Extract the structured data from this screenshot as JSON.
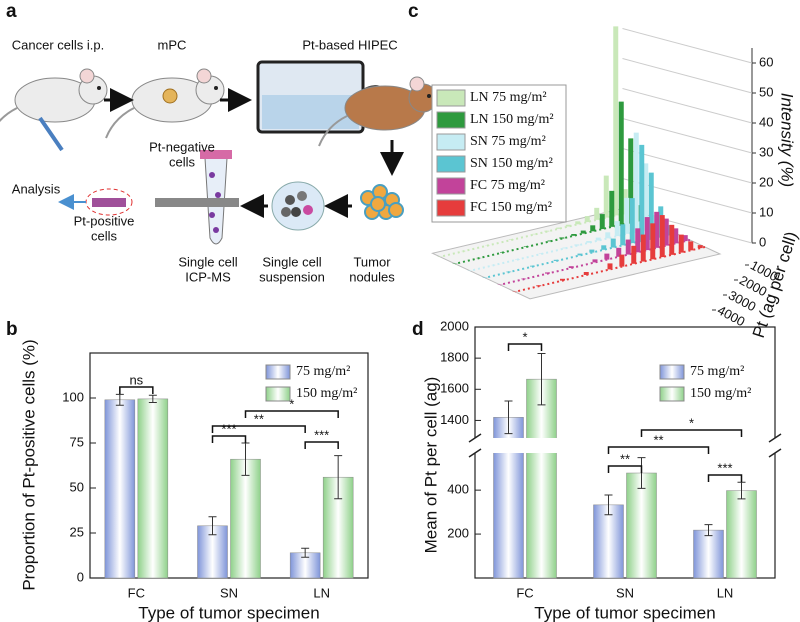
{
  "panel_labels": [
    "a",
    "b",
    "c",
    "d"
  ],
  "diagram": {
    "labels": [
      [
        "Cancer cells i.p."
      ],
      [
        "mPC"
      ],
      [
        "Pt-based HIPEC"
      ],
      [
        "Tumor",
        "nodules"
      ],
      [
        "Single cell",
        "suspension"
      ],
      [
        "Single cell",
        "ICP-MS"
      ],
      [
        "Pt-negative",
        "cells"
      ],
      [
        "Pt-positive",
        "cells"
      ],
      [
        "Analysis"
      ]
    ]
  },
  "chart_data": [
    {
      "type": "waterfall",
      "ylabel": "Intensity (%)",
      "xlabel": "Pt (ag per cell)",
      "x": [
        100,
        300,
        500,
        700,
        900,
        1100,
        1300,
        1500,
        1750,
        2000,
        2500,
        3000,
        3500,
        4000
      ],
      "xlim": [
        0,
        4000
      ],
      "xticks": [
        1000,
        2000,
        3000,
        4000
      ],
      "ylim": [
        0,
        65
      ],
      "yticks": [
        0,
        10,
        20,
        30,
        40,
        50,
        60
      ],
      "grid": true,
      "series": [
        {
          "name": "LN  75 mg/m²",
          "color": "#c9e8b9",
          "values": [
            8,
            63,
            14,
            4,
            2,
            1,
            0.6,
            0.4,
            0.3,
            0.2,
            0.2,
            0.1,
            0.1,
            0.1
          ]
        },
        {
          "name": "LN  150 mg/m²",
          "color": "#2e9a3e",
          "values": [
            5,
            28,
            41,
            12,
            5,
            2,
            1,
            0.6,
            0.4,
            0.3,
            0.2,
            0.2,
            0.1,
            0.1
          ]
        },
        {
          "name": "SN  75 mg/m²",
          "color": "#c6ecf3",
          "values": [
            4,
            22,
            33,
            12,
            5,
            2,
            1,
            0.6,
            0.4,
            0.3,
            0.2,
            0.2,
            0.1,
            0.1
          ]
        },
        {
          "name": "SN  150 mg/m²",
          "color": "#5bc5d2",
          "values": [
            3,
            10,
            22,
            32,
            15,
            7,
            3,
            1.5,
            1,
            0.6,
            0.4,
            0.3,
            0.2,
            0.1
          ]
        },
        {
          "name": "FC  75 mg/m²",
          "color": "#c2439a",
          "values": [
            2,
            5,
            9,
            12,
            11,
            8,
            5,
            3,
            2,
            1,
            0.6,
            0.4,
            0.2,
            0.1
          ]
        },
        {
          "name": "FC  150 mg/m²",
          "color": "#e63c3c",
          "values": [
            1,
            3,
            6,
            10,
            14,
            12,
            9,
            6,
            4,
            2,
            1,
            0.6,
            0.3,
            0.1
          ]
        }
      ]
    },
    {
      "type": "bar",
      "ylabel": "Proportion of Pt-positive cells (%)",
      "xlabel": "Type of tumor specimen",
      "categories": [
        "FC",
        "SN",
        "LN"
      ],
      "ylim": [
        0,
        125
      ],
      "yticks": [
        0,
        25,
        50,
        75,
        100
      ],
      "series": [
        {
          "name": "75 mg/m²",
          "color": "#7f95d9",
          "values": [
            99,
            29,
            14
          ],
          "errors": [
            3,
            5,
            2.5
          ]
        },
        {
          "name": "150 mg/m²",
          "color": "#8fd18a",
          "values": [
            99.5,
            66,
            56
          ],
          "errors": [
            2,
            9,
            12
          ]
        }
      ],
      "annotations": [
        "ns",
        "***",
        "**",
        "*",
        "***"
      ]
    },
    {
      "type": "bar",
      "ylabel": "Mean of Pt per cell (ag)",
      "xlabel": "Type of tumor specimen",
      "categories": [
        "FC",
        "SN",
        "LN"
      ],
      "ylim": [
        0,
        2000
      ],
      "axis_break": [
        560,
        1300
      ],
      "yticks": [
        200,
        400,
        1400,
        1600,
        1800,
        2000
      ],
      "series": [
        {
          "name": "75 mg/m²",
          "color": "#7f95d9",
          "values": [
            1420,
            333,
            218
          ],
          "errors": [
            105,
            45,
            25
          ]
        },
        {
          "name": "150 mg/m²",
          "color": "#8fd18a",
          "values": [
            1665,
            478,
            398
          ],
          "errors": [
            165,
            70,
            38
          ]
        }
      ],
      "annotations": [
        "*",
        "**",
        "**",
        "*",
        "***"
      ]
    }
  ]
}
